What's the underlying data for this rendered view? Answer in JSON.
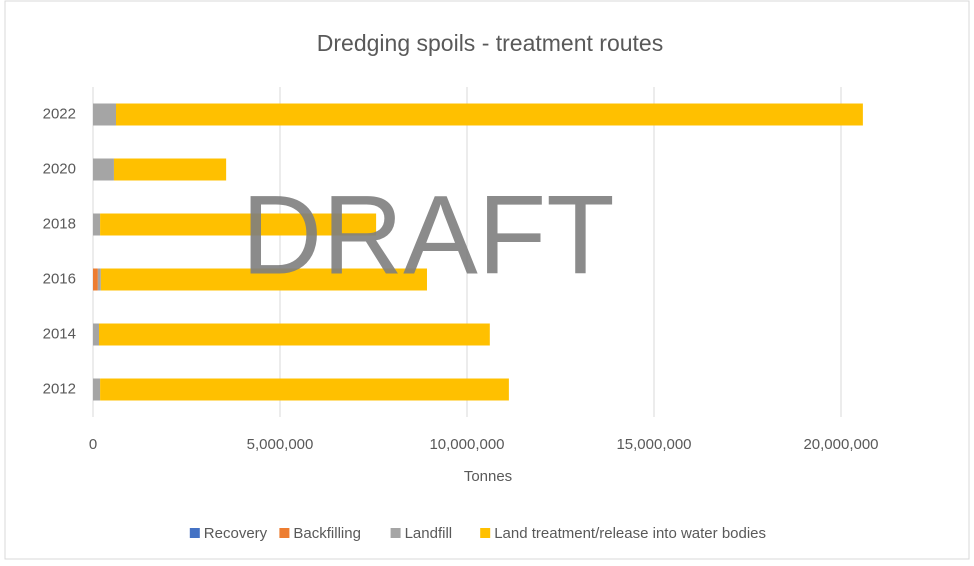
{
  "chart_data": {
    "type": "stacked_hbar",
    "title": "Dredging spoils - treatment routes",
    "watermark": "DRAFT",
    "categories": [
      "2012",
      "2014",
      "2016",
      "2018",
      "2020",
      "2022"
    ],
    "series": [
      {
        "name": "Recovery",
        "color": "#4472c4",
        "values": [
          0,
          0,
          0,
          0,
          0,
          0
        ]
      },
      {
        "name": "Backfilling",
        "color": "#ed7d31",
        "values": [
          0,
          0,
          130000,
          0,
          0,
          0
        ]
      },
      {
        "name": "Landfill",
        "color": "#a5a5a5",
        "values": [
          190000,
          160000,
          80000,
          190000,
          560000,
          615000
        ]
      },
      {
        "name": "Land treatment/release into water bodies",
        "color": "#ffc000",
        "values": [
          10930000,
          10450000,
          8720000,
          7380000,
          3000000,
          19970000
        ]
      }
    ],
    "xlabel": "Tonnes",
    "xlim": [
      0,
      22500000
    ],
    "xticks": [
      0,
      {
        "value": 5000000,
        "label": "5,000,000"
      },
      {
        "value": 10000000,
        "label": "10,000,000"
      },
      {
        "value": 15000000,
        "label": "15,000,000"
      },
      {
        "value": 20000000,
        "label": "20,000,000"
      }
    ],
    "grid": true,
    "legend": "bottom"
  }
}
